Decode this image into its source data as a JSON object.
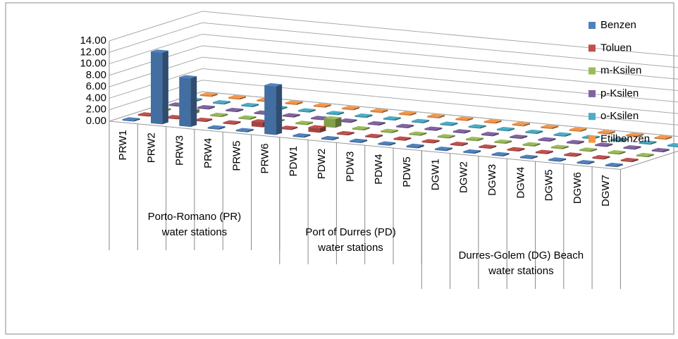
{
  "chart_data": {
    "type": "bar3d",
    "categories": [
      "PRW1",
      "PRW2",
      "PRW3",
      "PRW4",
      "PRW5",
      "PRW6",
      "PDW1",
      "PDW2",
      "PDW3",
      "PDW4",
      "PDW5",
      "DGW1",
      "DGW2",
      "DGW3",
      "DGW4",
      "DGW5",
      "DGW6",
      "DGW7"
    ],
    "groups": [
      {
        "lines": [
          "Porto-Romano (PR)",
          "water stations"
        ],
        "start": 0,
        "end": 6
      },
      {
        "lines": [
          "Port of Durres (PD)",
          "water stations"
        ],
        "start": 6,
        "end": 11
      },
      {
        "lines": [
          "Durres-Golem (DG) Beach",
          "water stations"
        ],
        "start": 11,
        "end": 18
      }
    ],
    "series": [
      {
        "name": "Benzen",
        "color": "#4f81bd",
        "values": [
          0,
          12.5,
          8.5,
          0,
          0,
          8.5,
          0,
          0,
          0,
          0,
          0.3,
          0,
          0,
          0,
          0,
          0,
          0,
          0
        ]
      },
      {
        "name": "Toluen",
        "color": "#c0504d",
        "values": [
          0,
          0.2,
          0,
          0,
          0.9,
          0,
          0.8,
          0,
          0,
          0,
          0,
          0,
          0,
          0,
          0,
          0,
          0,
          0
        ]
      },
      {
        "name": "m-Ksilen",
        "color": "#9bbb59",
        "values": [
          0,
          0.6,
          0,
          0,
          0,
          0,
          1.5,
          0,
          0,
          0,
          0,
          0,
          0,
          0,
          0,
          0,
          0,
          0
        ]
      },
      {
        "name": "p-Ksilen",
        "color": "#8064a2",
        "values": [
          0,
          0,
          0,
          0,
          0,
          0,
          0,
          0,
          0,
          0,
          0,
          0,
          0,
          0,
          0,
          0,
          0,
          0
        ]
      },
      {
        "name": "o-Ksilen",
        "color": "#4bacc6",
        "values": [
          0,
          0,
          0,
          0,
          0,
          0,
          0,
          0,
          0,
          0,
          0,
          0,
          0,
          0,
          0,
          0,
          0,
          0
        ]
      },
      {
        "name": "Etilbenzen",
        "color": "#f79646",
        "values": [
          0,
          0,
          0,
          0,
          0,
          0,
          0,
          0,
          0,
          0,
          0,
          0,
          0,
          0,
          0,
          0,
          0,
          0
        ]
      }
    ],
    "ylim": [
      0,
      14
    ],
    "yticks": [
      {
        "value": 0,
        "label": "0.00"
      },
      {
        "value": 2,
        "label": "2.00"
      },
      {
        "value": 4,
        "label": "4.00"
      },
      {
        "value": 6,
        "label": "6.00"
      },
      {
        "value": 8,
        "label": "8.00"
      },
      {
        "value": 10,
        "label": "10.00"
      },
      {
        "value": 12,
        "label": "12.00"
      },
      {
        "value": 14,
        "label": "14.00"
      }
    ],
    "grid": true,
    "legend": "right"
  }
}
